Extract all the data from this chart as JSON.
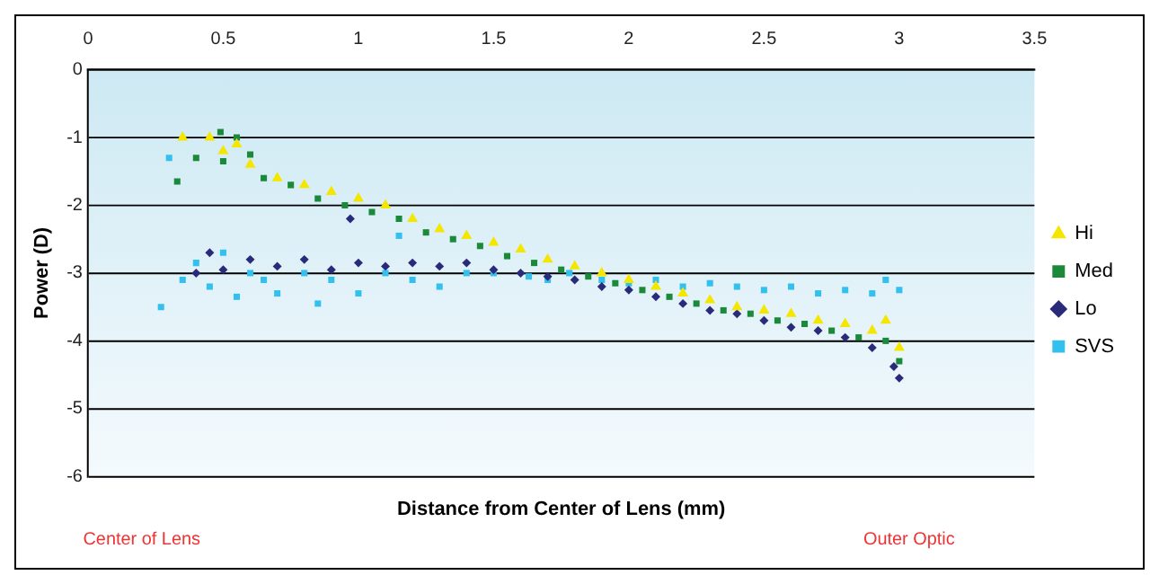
{
  "chart_data": {
    "type": "scatter",
    "xlabel": "Distance from Center of Lens (mm)",
    "ylabel": "Power (D)",
    "annotations": [
      "Center of Lens",
      "Outer Optic"
    ],
    "xlim": [
      0,
      3.5
    ],
    "xticks": [
      0,
      0.5,
      1,
      1.5,
      2,
      2.5,
      3,
      3.5
    ],
    "ylim": [
      -6,
      0
    ],
    "yticks": [
      0,
      -1,
      -2,
      -3,
      -4,
      -5,
      -6
    ],
    "grid": "y",
    "legend": "right",
    "series": [
      {
        "name": "Hi",
        "color": "#f5e600",
        "marker": "triangle",
        "x": [
          0.35,
          0.45,
          0.5,
          0.55,
          0.6,
          0.7,
          0.8,
          0.9,
          1.0,
          1.1,
          1.2,
          1.3,
          1.4,
          1.5,
          1.6,
          1.7,
          1.8,
          1.9,
          2.0,
          2.1,
          2.2,
          2.3,
          2.4,
          2.5,
          2.6,
          2.7,
          2.8,
          2.9,
          2.95,
          3.0
        ],
        "values": [
          -1.0,
          -1.0,
          -1.2,
          -1.1,
          -1.4,
          -1.6,
          -1.7,
          -1.8,
          -1.9,
          -2.0,
          -2.2,
          -2.35,
          -2.45,
          -2.55,
          -2.65,
          -2.8,
          -2.9,
          -3.0,
          -3.1,
          -3.2,
          -3.3,
          -3.4,
          -3.5,
          -3.55,
          -3.6,
          -3.7,
          -3.75,
          -3.85,
          -3.7,
          -4.1
        ]
      },
      {
        "name": "Med",
        "color": "#1a8a3a",
        "marker": "square",
        "x": [
          0.33,
          0.4,
          0.49,
          0.5,
          0.55,
          0.6,
          0.65,
          0.75,
          0.85,
          0.95,
          1.05,
          1.15,
          1.25,
          1.35,
          1.45,
          1.55,
          1.65,
          1.75,
          1.85,
          1.95,
          2.05,
          2.15,
          2.25,
          2.35,
          2.45,
          2.55,
          2.65,
          2.75,
          2.85,
          2.95,
          3.0
        ],
        "values": [
          -1.65,
          -1.3,
          -0.92,
          -1.35,
          -1.0,
          -1.25,
          -1.6,
          -1.7,
          -1.9,
          -2.0,
          -2.1,
          -2.2,
          -2.4,
          -2.5,
          -2.6,
          -2.75,
          -2.85,
          -2.95,
          -3.05,
          -3.15,
          -3.25,
          -3.35,
          -3.45,
          -3.55,
          -3.6,
          -3.7,
          -3.75,
          -3.85,
          -3.95,
          -4.0,
          -4.3
        ]
      },
      {
        "name": "Lo",
        "color": "#2a2a7a",
        "marker": "diamond",
        "x": [
          0.4,
          0.45,
          0.5,
          0.6,
          0.7,
          0.8,
          0.9,
          0.97,
          1.0,
          1.1,
          1.2,
          1.3,
          1.4,
          1.5,
          1.6,
          1.7,
          1.8,
          1.9,
          2.0,
          2.1,
          2.2,
          2.3,
          2.4,
          2.5,
          2.6,
          2.7,
          2.8,
          2.9,
          2.98,
          3.0
        ],
        "values": [
          -3.0,
          -2.7,
          -2.95,
          -2.8,
          -2.9,
          -2.8,
          -2.95,
          -2.2,
          -2.85,
          -2.9,
          -2.85,
          -2.9,
          -2.85,
          -2.95,
          -3.0,
          -3.05,
          -3.1,
          -3.2,
          -3.25,
          -3.35,
          -3.45,
          -3.55,
          -3.6,
          -3.7,
          -3.8,
          -3.85,
          -3.95,
          -4.1,
          -4.38,
          -4.55
        ]
      },
      {
        "name": "SVS",
        "color": "#33c0ee",
        "marker": "square",
        "x": [
          0.27,
          0.3,
          0.35,
          0.4,
          0.45,
          0.5,
          0.55,
          0.6,
          0.65,
          0.7,
          0.8,
          0.85,
          0.9,
          1.0,
          1.1,
          1.15,
          1.2,
          1.3,
          1.4,
          1.5,
          1.63,
          1.7,
          1.78,
          1.9,
          2.0,
          2.1,
          2.2,
          2.3,
          2.4,
          2.5,
          2.6,
          2.7,
          2.8,
          2.9,
          2.95,
          3.0
        ],
        "values": [
          -3.5,
          -1.3,
          -3.1,
          -2.85,
          -3.2,
          -2.7,
          -3.35,
          -3.0,
          -3.1,
          -3.3,
          -3.0,
          -3.45,
          -3.1,
          -3.3,
          -3.0,
          -2.45,
          -3.1,
          -3.2,
          -3.0,
          -3.0,
          -3.05,
          -3.1,
          -3.0,
          -3.1,
          -3.15,
          -3.1,
          -3.2,
          -3.15,
          -3.2,
          -3.25,
          -3.2,
          -3.3,
          -3.25,
          -3.3,
          -3.1,
          -3.25
        ]
      }
    ]
  }
}
